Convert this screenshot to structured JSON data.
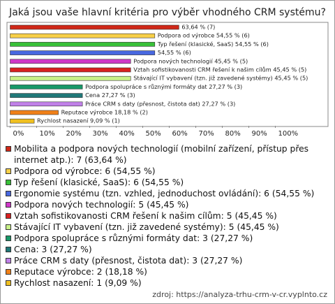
{
  "chart_data": {
    "type": "bar",
    "orientation": "horizontal",
    "title": "Jaká jsou vaše hlavní kritéria pro výběr vhodného CRM systému?",
    "categories": [
      "Mobilita a podpora nových technologií",
      "Podpora od výrobce",
      "Typ řešení (klasické, SaaS)",
      "Ergonomie systému",
      "Podpora nových technologií",
      "Vztah sofistikovanosti CRM řešení k našim cílům",
      "Stávající IT vybavení (tzn. již zavedené systémy)",
      "Podpora spolupráce s různými formáty dat",
      "Cena",
      "Práce CRM s daty (přesnost, čistota dat)",
      "Reputace výrobce",
      "Rychlost nasazení"
    ],
    "values": [
      63.64,
      54.55,
      54.55,
      54.55,
      45.45,
      45.45,
      45.45,
      27.27,
      27.27,
      27.27,
      18.18,
      9.09
    ],
    "value_labels": [
      "63,64 % (7)",
      "Podpora od výrobce 54,55 % (6)",
      "Typ řešení (klasické, SaaS) 54,55 % (6)",
      "54,55 % (6)",
      "Podpora nových technologií 45,45 % (5)",
      "Vztah sofistikovanosti CRM řešení k našim cílům 45,45 % (5)",
      "Stávající IT vybavení (tzn. již zavedené systémy) 45,45 % (5)",
      "Podpora spolupráce s různými formáty dat 27,27 % (3)",
      "Cena 27,27 % (3)",
      "Práce CRM s daty (přesnost, čistota dat) 27,27 % (3)",
      "Reputace výrobce 18,18 % (2)",
      "Rychlost nasazení 9,09 % (1)"
    ],
    "colors": [
      "#d02818",
      "#f8d048",
      "#38c038",
      "#4868e0",
      "#d038c8",
      "#d82020",
      "#c8f088",
      "#189868",
      "#207878",
      "#c080e8",
      "#f08018",
      "#f0c020"
    ],
    "legend_labels": [
      "Mobilita a podpora nových technologií (mobilní zařízení, přístup přes internet atp.): 7 (63,64 %)",
      "Podpora od výrobce: 6 (54,55 %)",
      "Typ řešení (klasické, SaaS): 6 (54,55 %)",
      "Ergonomie systému (tzn. vzhled, jednoduchost ovládání): 6 (54,55 %)",
      "Podpora nových technologií: 5 (45,45 %)",
      "Vztah sofistikovanosti CRM řešení k našim cílům: 5 (45,45 %)",
      "Stávající IT vybavení (tzn. již zavedené systémy): 5 (45,45 %)",
      "Podpora spolupráce s různými formáty dat: 3 (27,27 %)",
      "Cena: 3 (27,27 %)",
      "Práce CRM s daty (přesnost, čistota dat): 3 (27,27 %)",
      "Reputace výrobce: 2 (18,18 %)",
      "Rychlost nasazení: 1 (9,09 %)"
    ],
    "xlim": [
      0,
      100
    ],
    "xticks": [
      {
        "value": 0,
        "label": "0%"
      },
      {
        "value": 10,
        "label": "10%"
      },
      {
        "value": 20,
        "label": "20%"
      },
      {
        "value": 30,
        "label": "30%"
      },
      {
        "value": 40,
        "label": "40%"
      },
      {
        "value": 50,
        "label": "50%"
      },
      {
        "value": 60,
        "label": "60%"
      },
      {
        "value": 70,
        "label": "70%"
      },
      {
        "value": 80,
        "label": "80%"
      },
      {
        "value": 90,
        "label": "90%"
      },
      {
        "value": 100,
        "label": "100%"
      }
    ],
    "source": "zdroj: https://analyza-trhu-crm-v-cr.vyplnto.cz"
  }
}
